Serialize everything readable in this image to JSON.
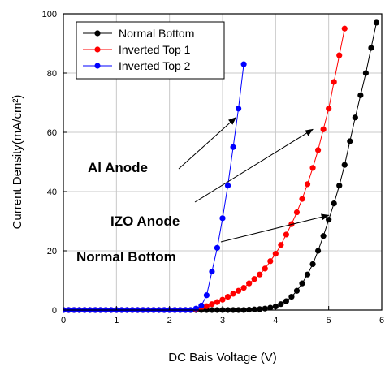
{
  "chart_data": {
    "type": "line",
    "title": "",
    "xlabel": "DC Bais Voltage (V)",
    "ylabel": "Current Density(mA/cm²)",
    "xlim": [
      0,
      6
    ],
    "ylim": [
      0,
      100
    ],
    "x_ticks": [
      0,
      1,
      2,
      3,
      4,
      5,
      6
    ],
    "y_ticks": [
      0,
      20,
      40,
      60,
      80,
      100
    ],
    "grid": true,
    "legend_position": "top-right",
    "series": [
      {
        "name": "Normal Bottom",
        "color": "#000000",
        "marker": "circle",
        "x": [
          0.0,
          0.1,
          0.2,
          0.3,
          0.4,
          0.5,
          0.6,
          0.7,
          0.8,
          0.9,
          1.0,
          1.1,
          1.2,
          1.3,
          1.4,
          1.5,
          1.6,
          1.7,
          1.8,
          1.9,
          2.0,
          2.1,
          2.2,
          2.3,
          2.4,
          2.5,
          2.6,
          2.7,
          2.8,
          2.9,
          3.0,
          3.1,
          3.2,
          3.3,
          3.4,
          3.5,
          3.6,
          3.7,
          3.8,
          3.9,
          4.0,
          4.1,
          4.2,
          4.3,
          4.4,
          4.5,
          4.6,
          4.7,
          4.8,
          4.9,
          5.0,
          5.1,
          5.2,
          5.3,
          5.4,
          5.5,
          5.6,
          5.7,
          5.8,
          5.9
        ],
        "y": [
          0,
          0,
          0,
          0,
          0,
          0,
          0,
          0,
          0,
          0,
          0,
          0,
          0,
          0,
          0,
          0,
          0,
          0,
          0,
          0,
          0,
          0,
          0,
          0,
          0,
          0,
          0,
          0,
          0,
          0,
          0,
          0,
          0,
          0,
          0,
          0.1,
          0.2,
          0.3,
          0.5,
          0.8,
          1.2,
          2,
          3,
          4.5,
          6.5,
          9,
          12,
          15.5,
          20,
          25,
          30.5,
          36,
          42,
          49,
          57,
          65,
          72.5,
          80,
          88.5,
          97
        ]
      },
      {
        "name": "Inverted Top 1",
        "color": "#ff0000",
        "marker": "circle",
        "x": [
          0.0,
          0.1,
          0.2,
          0.3,
          0.4,
          0.5,
          0.6,
          0.7,
          0.8,
          0.9,
          1.0,
          1.1,
          1.2,
          1.3,
          1.4,
          1.5,
          1.6,
          1.7,
          1.8,
          1.9,
          2.0,
          2.1,
          2.2,
          2.3,
          2.4,
          2.5,
          2.6,
          2.7,
          2.8,
          2.9,
          3.0,
          3.1,
          3.2,
          3.3,
          3.4,
          3.5,
          3.6,
          3.7,
          3.8,
          3.9,
          4.0,
          4.1,
          4.2,
          4.3,
          4.4,
          4.5,
          4.6,
          4.7,
          4.8,
          4.9,
          5.0,
          5.1,
          5.2,
          5.3
        ],
        "y": [
          0,
          0,
          0,
          0,
          0,
          0,
          0,
          0,
          0,
          0,
          0,
          0,
          0,
          0,
          0,
          0,
          0,
          0,
          0,
          0,
          0,
          0,
          0,
          0,
          0,
          0.3,
          0.8,
          1.3,
          2,
          2.7,
          3.5,
          4.5,
          5.5,
          6.5,
          7.5,
          9,
          10.5,
          12,
          14,
          16.5,
          19,
          22,
          25.5,
          29,
          33,
          37.5,
          42.5,
          48,
          54,
          61,
          68,
          77,
          86,
          95
        ]
      },
      {
        "name": "Inverted Top 2",
        "color": "#0000ff",
        "marker": "circle",
        "x": [
          0.0,
          0.1,
          0.2,
          0.3,
          0.4,
          0.5,
          0.6,
          0.7,
          0.8,
          0.9,
          1.0,
          1.1,
          1.2,
          1.3,
          1.4,
          1.5,
          1.6,
          1.7,
          1.8,
          1.9,
          2.0,
          2.1,
          2.2,
          2.3,
          2.4,
          2.5,
          2.6,
          2.7,
          2.8,
          2.9,
          3.0,
          3.1,
          3.2,
          3.3,
          3.4
        ],
        "y": [
          0,
          0,
          0,
          0,
          0,
          0,
          0,
          0,
          0,
          0,
          0,
          0,
          0,
          0,
          0,
          0,
          0,
          0,
          0,
          0,
          0,
          0,
          0,
          0,
          0,
          0.5,
          1.5,
          5,
          13,
          21,
          31,
          42,
          55,
          68,
          83
        ]
      }
    ],
    "annotations": [
      {
        "text": "Al Anode",
        "arrow_to": [
          3.25,
          65
        ]
      },
      {
        "text": "IZO Anode",
        "arrow_to": [
          4.7,
          61
        ]
      },
      {
        "text": "Normal Bottom",
        "arrow_to": [
          5.0,
          32
        ]
      }
    ]
  }
}
